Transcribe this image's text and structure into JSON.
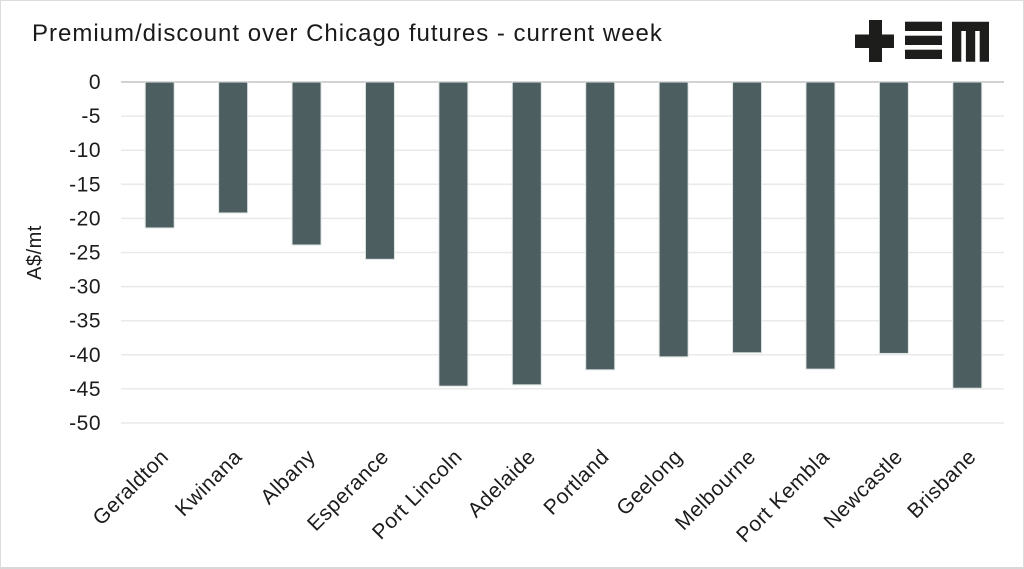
{
  "header": {
    "title": "Premium/discount over Chicago futures - current week",
    "logo": {
      "icon": "tem-logo",
      "color": "#1d1d1b"
    }
  },
  "chart_data": {
    "type": "bar",
    "title": "Premium/discount over Chicago futures - current week",
    "xlabel": "",
    "ylabel": "A$/mt",
    "ylim": [
      -50,
      0
    ],
    "ytick_step": 5,
    "ytick_labels": [
      "0",
      "-5",
      "-10",
      "-15",
      "-20",
      "-25",
      "-30",
      "-35",
      "-40",
      "-45",
      "-50"
    ],
    "grid": true,
    "legend": false,
    "orientation": "vertical",
    "categories": [
      "Geraldton",
      "Kwinana",
      "Albany",
      "Esperance",
      "Port Lincoln",
      "Adelaide",
      "Portland",
      "Geelong",
      "Melbourne",
      "Port Kembla",
      "Newcastle",
      "Brisbane"
    ],
    "values": [
      -21.4,
      -19.2,
      -23.9,
      -26.0,
      -44.6,
      -44.4,
      -42.2,
      -40.3,
      -39.7,
      -42.1,
      -39.8,
      -44.9
    ],
    "unit": "A$/mt"
  },
  "colors": {
    "bar_fill": "#4c5e60",
    "bar_edge": "#dde3e3",
    "grid_line": "#e9e9e9",
    "zero_line": "#d2d2d2",
    "text": "#1c1c1c",
    "logo": "#1d1d1b"
  }
}
